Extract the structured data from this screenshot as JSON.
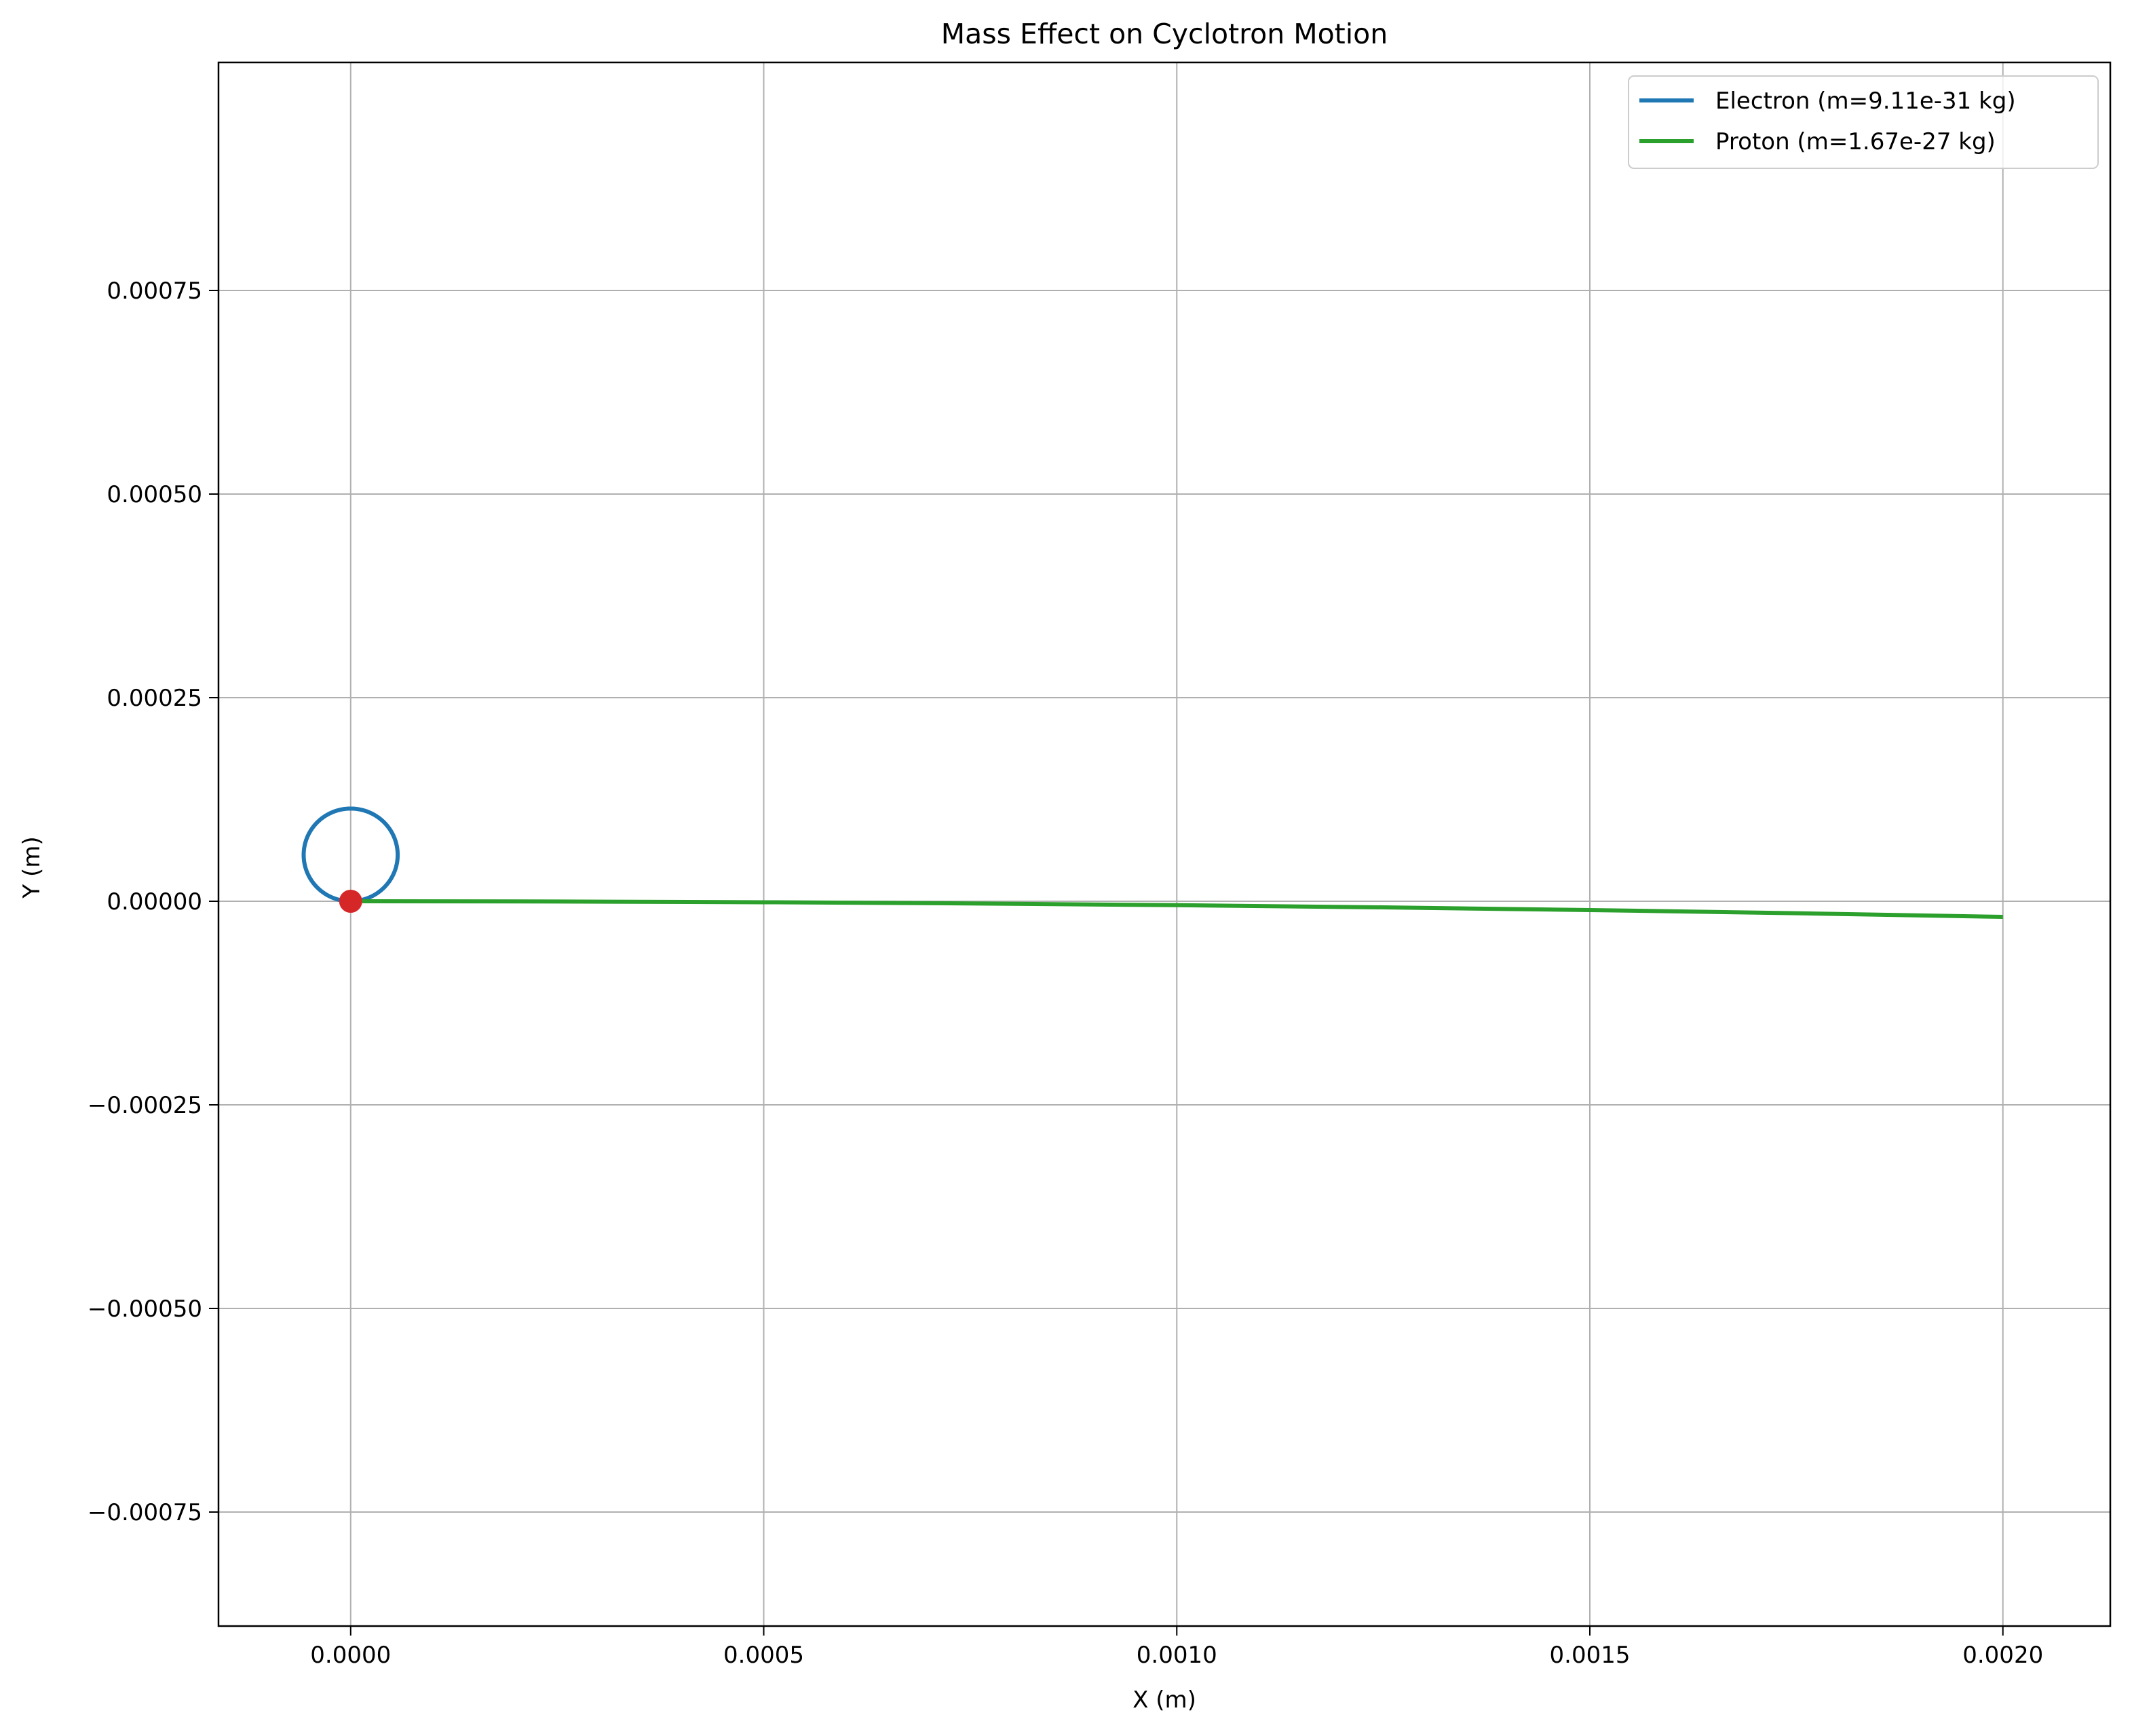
{
  "chart_data": {
    "type": "line",
    "title": "Mass Effect on Cyclotron Motion",
    "xlabel": "X (m)",
    "ylabel": "Y (m)",
    "xlim": [
      -0.00016,
      0.00213
    ],
    "ylim": [
      -0.00089,
      0.00103
    ],
    "x_ticks": [
      0.0,
      0.0005,
      0.001,
      0.0015,
      0.002
    ],
    "x_tick_labels": [
      "0.0000",
      "0.0005",
      "0.0010",
      "0.0015",
      "0.0020"
    ],
    "y_ticks": [
      0.00075,
      0.0005,
      0.00025,
      0.0,
      -0.00025,
      -0.0005,
      -0.00075
    ],
    "y_tick_labels": [
      "0.00075",
      "0.00050",
      "0.00025",
      "0.00000",
      "−0.00025",
      "−0.00050",
      "−0.00075"
    ],
    "grid": true,
    "legend_position": "top-right",
    "series": [
      {
        "name": "Electron (m=9.11e-31 kg)",
        "color": "#1f77b4",
        "shape": "circle",
        "center": [
          0.0,
          5.69e-05
        ],
        "radius": 5.69e-05
      },
      {
        "name": "Proton (m=1.67e-27 kg)",
        "color": "#2ca02c",
        "x": [
          0.0,
          0.00025,
          0.0005,
          0.00075,
          0.001,
          0.00125,
          0.0015,
          0.00175,
          0.002
        ],
        "y": [
          0.0,
          -3e-07,
          -1.2e-06,
          -2.7e-06,
          -4.8e-06,
          -7.5e-06,
          -1.08e-05,
          -1.47e-05,
          -1.92e-05
        ]
      }
    ],
    "markers": [
      {
        "x": 0.0,
        "y": 0.0,
        "color": "#d62728"
      }
    ]
  }
}
